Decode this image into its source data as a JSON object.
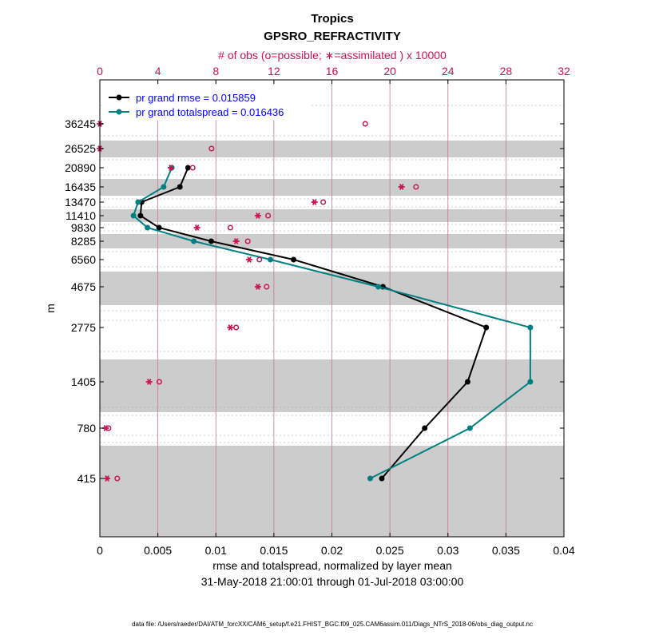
{
  "chart_data": {
    "type": "line",
    "title": "Tropics",
    "subtitle": "GPSRO_REFRACTIVITY",
    "xlabel": "rmse and totalspread, normalized by layer mean",
    "ylabel": "m",
    "date_range": "31-May-2018 21:00:01 through 01-Jul-2018 03:00:00",
    "footnote": "data file: /Users/raeder/DAI/ATM_forcXX/CAM6_setup/f.e21.FHIST_BGC.f09_025.CAM6assim.011/Diags_NTrS_2018-06/obs_diag_output.nc",
    "xlim": [
      0,
      0.04
    ],
    "x_ticks": [
      0,
      0.005,
      0.01,
      0.015,
      0.02,
      0.025,
      0.03,
      0.035,
      0.04
    ],
    "x_tick_labels": [
      "0",
      "0.005",
      "0.01",
      "0.015",
      "0.02",
      "0.025",
      "0.03",
      "0.035",
      "0.04"
    ],
    "top_axis": {
      "label": "# of obs (o=possible; ∗=assimilated ) x 10000",
      "xlim": [
        0,
        32
      ],
      "ticks": [
        0,
        4,
        8,
        12,
        16,
        20,
        24,
        28,
        32
      ],
      "tick_labels": [
        "0",
        "4",
        "8",
        "12",
        "16",
        "20",
        "24",
        "28",
        "32"
      ],
      "color": "#cc1155"
    },
    "y_levels": [
      36245,
      26525,
      20890,
      16435,
      13470,
      11410,
      9830,
      8285,
      6560,
      4675,
      2775,
      1405,
      780,
      415
    ],
    "y_tick_labels": [
      "36245",
      "26525",
      "20890",
      "16435",
      "13470",
      "11410",
      "9830",
      "8285",
      "6560",
      "4675",
      "2775",
      "1405",
      "780",
      "415"
    ],
    "series": [
      {
        "name": "pr grand rmse = 0.015859",
        "color": "#000000",
        "levels": [
          20890,
          16435,
          13470,
          11410,
          9830,
          8285,
          6560,
          4675,
          2775,
          1405,
          780,
          415
        ],
        "values": [
          0.0076,
          0.0069,
          0.0036,
          0.0035,
          0.0051,
          0.0096,
          0.0167,
          0.0244,
          0.0333,
          0.0317,
          0.028,
          0.0243
        ]
      },
      {
        "name": "pr grand totalspread = 0.016436",
        "color": "#008080",
        "levels": [
          20890,
          16435,
          13470,
          11410,
          9830,
          8285,
          6560,
          4675,
          2775,
          1405,
          780,
          415
        ],
        "values": [
          0.0062,
          0.0055,
          0.0033,
          0.0029,
          0.0041,
          0.0081,
          0.0147,
          0.024,
          0.0371,
          0.0371,
          0.0319,
          0.0233
        ]
      }
    ],
    "obs_counts": {
      "levels": [
        36245,
        26525,
        20890,
        16435,
        13470,
        11410,
        9830,
        8285,
        6560,
        4675,
        2775,
        1405,
        780,
        415
      ],
      "possible_x10000": [
        18.3,
        7.7,
        6.4,
        21.8,
        15.4,
        11.6,
        9.0,
        10.2,
        11.0,
        11.5,
        9.4,
        4.1,
        0.6,
        1.2
      ],
      "assimilated_x10000": [
        0.0,
        0.0,
        4.9,
        20.8,
        14.8,
        10.9,
        6.7,
        9.4,
        10.3,
        10.9,
        9.0,
        3.4,
        0.4,
        0.5
      ],
      "color": "#cc1155"
    },
    "grid": true,
    "legend_position": "top-left"
  }
}
